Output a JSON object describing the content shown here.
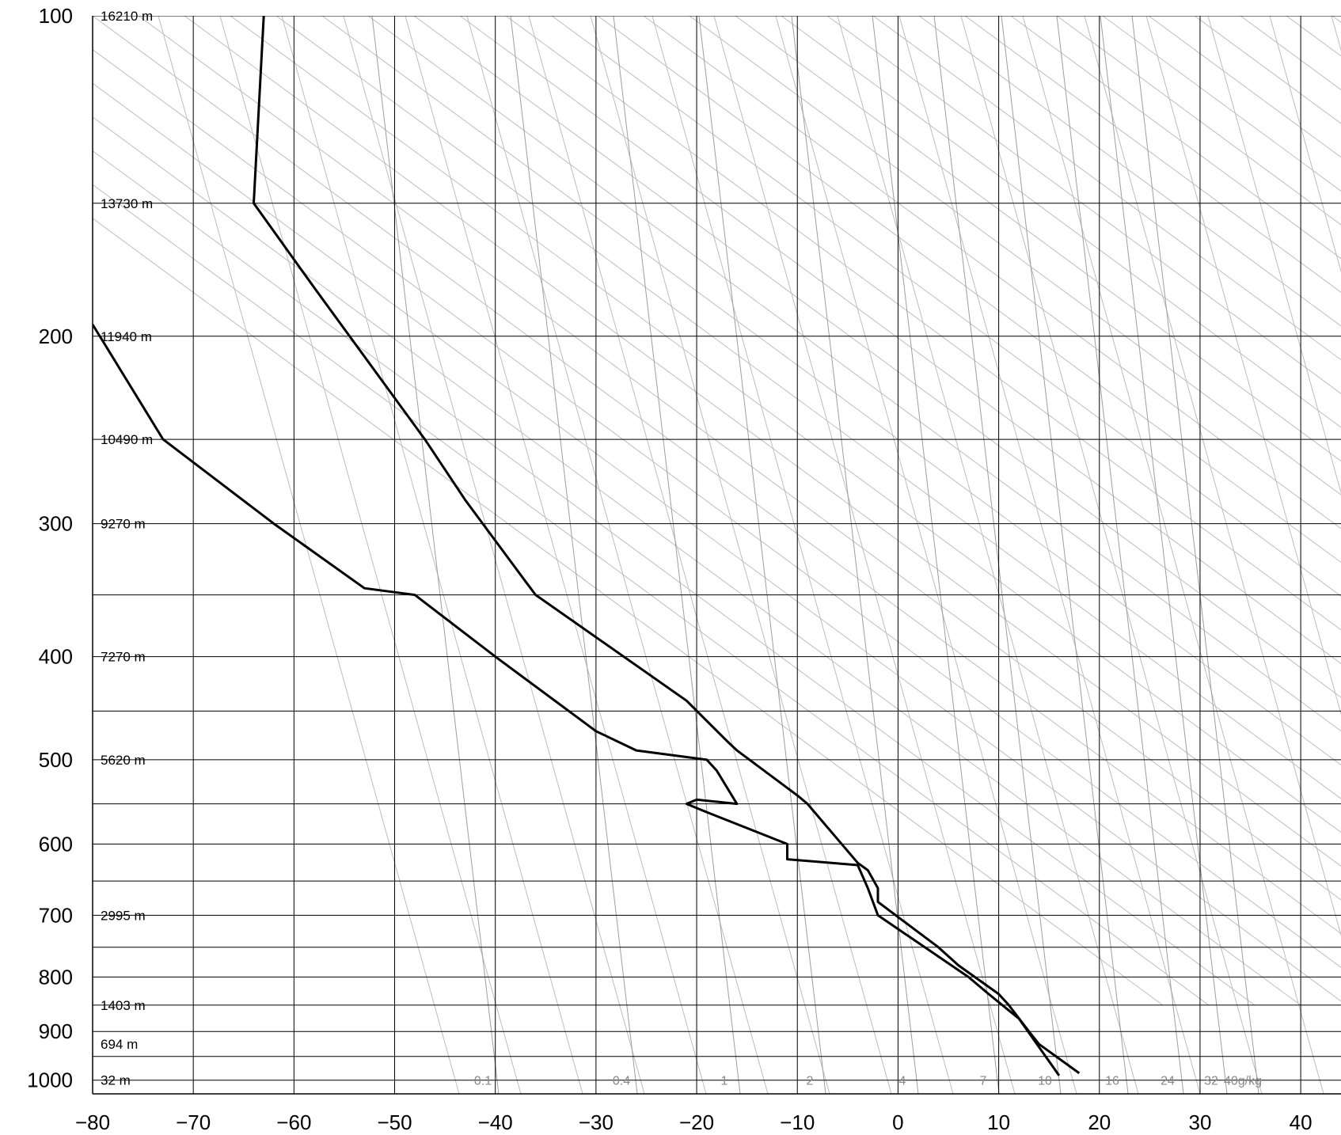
{
  "chart_data": {
    "type": "line",
    "title": "",
    "xlabel": "",
    "ylabel": "",
    "xlim": [
      -80,
      44
    ],
    "ylim": [
      1030,
      100
    ],
    "y_scale": "log",
    "grid": true,
    "x_ticks": [
      -80,
      -70,
      -60,
      -50,
      -40,
      -30,
      -20,
      -10,
      0,
      10,
      20,
      30,
      40
    ],
    "x_tick_labels": [
      "−80",
      "−70",
      "−60",
      "−50",
      "−40",
      "−30",
      "−20",
      "−10",
      "0",
      "10",
      "20",
      "30",
      "40"
    ],
    "y_ticks": [
      100,
      200,
      300,
      400,
      500,
      600,
      700,
      800,
      900,
      1000
    ],
    "y_tick_labels": [
      "100",
      "200",
      "300",
      "400",
      "500",
      "600",
      "700",
      "800",
      "900",
      "1000"
    ],
    "extra_pressure_lines": [
      150,
      250,
      350,
      450,
      550,
      650,
      750,
      850,
      950
    ],
    "height_labels": [
      {
        "p": 100,
        "text": "16210 m"
      },
      {
        "p": 150,
        "text": "13730 m"
      },
      {
        "p": 200,
        "text": "11940 m"
      },
      {
        "p": 250,
        "text": "10490 m"
      },
      {
        "p": 300,
        "text": "9270 m"
      },
      {
        "p": 400,
        "text": "7270 m"
      },
      {
        "p": 500,
        "text": "5620 m"
      },
      {
        "p": 700,
        "text": "2995 m"
      },
      {
        "p": 850,
        "text": "1403 m"
      },
      {
        "p": 925,
        "text": "694 m"
      },
      {
        "p": 1000,
        "text": "32 m"
      }
    ],
    "mixing_ratio_labels": [
      "0.1",
      "0.4",
      "1",
      "2",
      "4",
      "7",
      "10",
      "16",
      "24",
      "32",
      "40g/kg"
    ],
    "series": [
      {
        "values": [
          [
            -63,
            100
          ],
          [
            -64,
            150
          ],
          [
            -58,
            180
          ],
          [
            -47,
            250
          ],
          [
            -43,
            285
          ],
          [
            -37,
            340
          ],
          [
            -36,
            350
          ],
          [
            -21,
            440
          ],
          [
            -17,
            480
          ],
          [
            -16,
            490
          ],
          [
            -10,
            540
          ],
          [
            -9,
            550
          ],
          [
            -4,
            625
          ],
          [
            -3,
            635
          ],
          [
            -2,
            660
          ],
          [
            -2,
            680
          ],
          [
            4,
            750
          ],
          [
            6,
            780
          ],
          [
            10,
            830
          ],
          [
            11,
            850
          ],
          [
            13,
            900
          ],
          [
            14,
            925
          ],
          [
            18,
            985
          ]
        ]
      },
      {
        "values": [
          [
            -80,
            195
          ],
          [
            -73,
            250
          ],
          [
            -62,
            300
          ],
          [
            -53,
            345
          ],
          [
            -48,
            350
          ],
          [
            -40,
            400
          ],
          [
            -30,
            470
          ],
          [
            -26,
            490
          ],
          [
            -19,
            500
          ],
          [
            -18,
            512
          ],
          [
            -16,
            550
          ],
          [
            -20,
            545
          ],
          [
            -21,
            550
          ],
          [
            -19,
            560
          ],
          [
            -11,
            600
          ],
          [
            -11,
            620
          ],
          [
            -4,
            628
          ],
          [
            -3,
            660
          ],
          [
            -2,
            700
          ],
          [
            7,
            800
          ],
          [
            9,
            830
          ],
          [
            12,
            875
          ],
          [
            16,
            990
          ]
        ]
      }
    ]
  }
}
